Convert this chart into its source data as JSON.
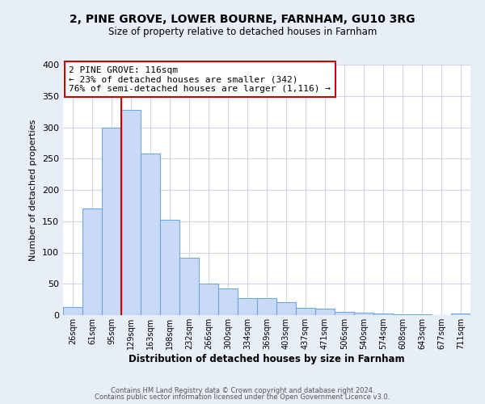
{
  "title": "2, PINE GROVE, LOWER BOURNE, FARNHAM, GU10 3RG",
  "subtitle": "Size of property relative to detached houses in Farnham",
  "xlabel": "Distribution of detached houses by size in Farnham",
  "ylabel": "Number of detached properties",
  "bar_labels": [
    "26sqm",
    "61sqm",
    "95sqm",
    "129sqm",
    "163sqm",
    "198sqm",
    "232sqm",
    "266sqm",
    "300sqm",
    "334sqm",
    "369sqm",
    "403sqm",
    "437sqm",
    "471sqm",
    "506sqm",
    "540sqm",
    "574sqm",
    "608sqm",
    "643sqm",
    "677sqm",
    "711sqm"
  ],
  "bar_values": [
    13,
    170,
    300,
    328,
    258,
    152,
    91,
    50,
    42,
    27,
    27,
    21,
    11,
    10,
    5,
    4,
    3,
    1,
    1,
    0,
    2
  ],
  "bar_color": "#c9daf8",
  "bar_edge_color": "#6fa8dc",
  "vline_x": 3.0,
  "vline_color": "#cc0000",
  "annotation_title": "2 PINE GROVE: 116sqm",
  "annotation_line1": "← 23% of detached houses are smaller (342)",
  "annotation_line2": "76% of semi-detached houses are larger (1,116) →",
  "annotation_box_color": "#ffffff",
  "annotation_box_edge": "#cc0000",
  "ylim": [
    0,
    400
  ],
  "yticks": [
    0,
    50,
    100,
    150,
    200,
    250,
    300,
    350,
    400
  ],
  "axes_bg": "#ffffff",
  "fig_bg": "#e8eef8",
  "grid_color": "#d0d8e8",
  "footer1": "Contains HM Land Registry data © Crown copyright and database right 2024.",
  "footer2": "Contains public sector information licensed under the Open Government Licence v3.0."
}
